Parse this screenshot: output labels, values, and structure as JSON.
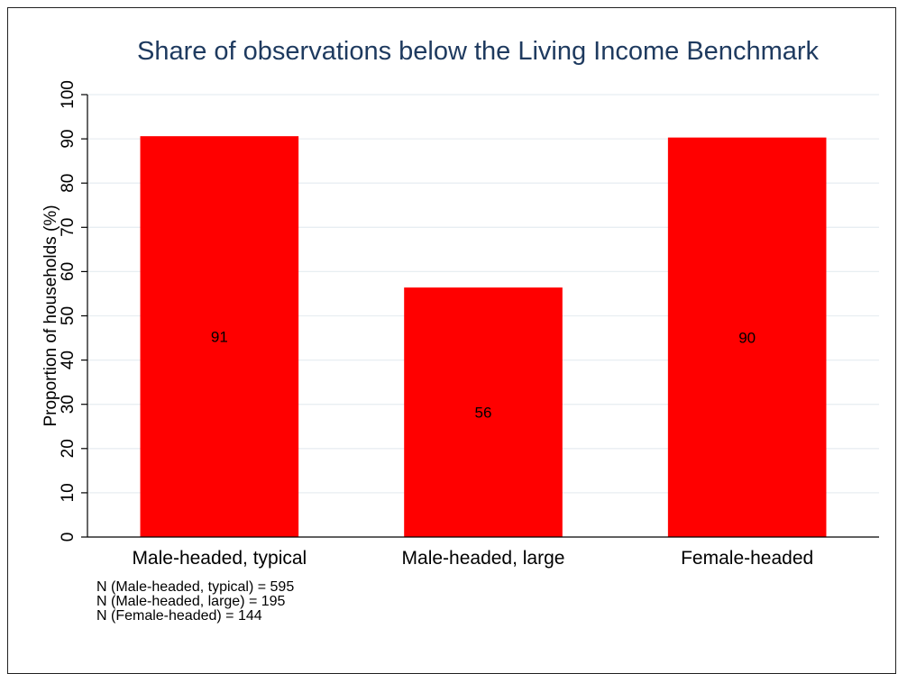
{
  "chart_data": {
    "type": "bar",
    "title": "Share of observations below the Living Income Benchmark",
    "ylabel": "Proportion of households (%)",
    "xlabel": "",
    "categories": [
      "Male-headed, typical",
      "Male-headed, large",
      "Female-headed"
    ],
    "values": [
      90.6,
      56.4,
      90.3
    ],
    "data_labels": [
      "91",
      "56",
      "90"
    ],
    "ylim": [
      0,
      100
    ],
    "yticks": [
      0,
      10,
      20,
      30,
      40,
      50,
      60,
      70,
      80,
      90,
      100
    ],
    "grid": true,
    "bar_color": "#ff0000",
    "grid_color": "#e8eef2",
    "title_color": "#1e3a5f",
    "notes": [
      "N (Male-headed, typical) = 595",
      "N (Male-headed, large) = 195",
      "N (Female-headed) = 144"
    ]
  }
}
